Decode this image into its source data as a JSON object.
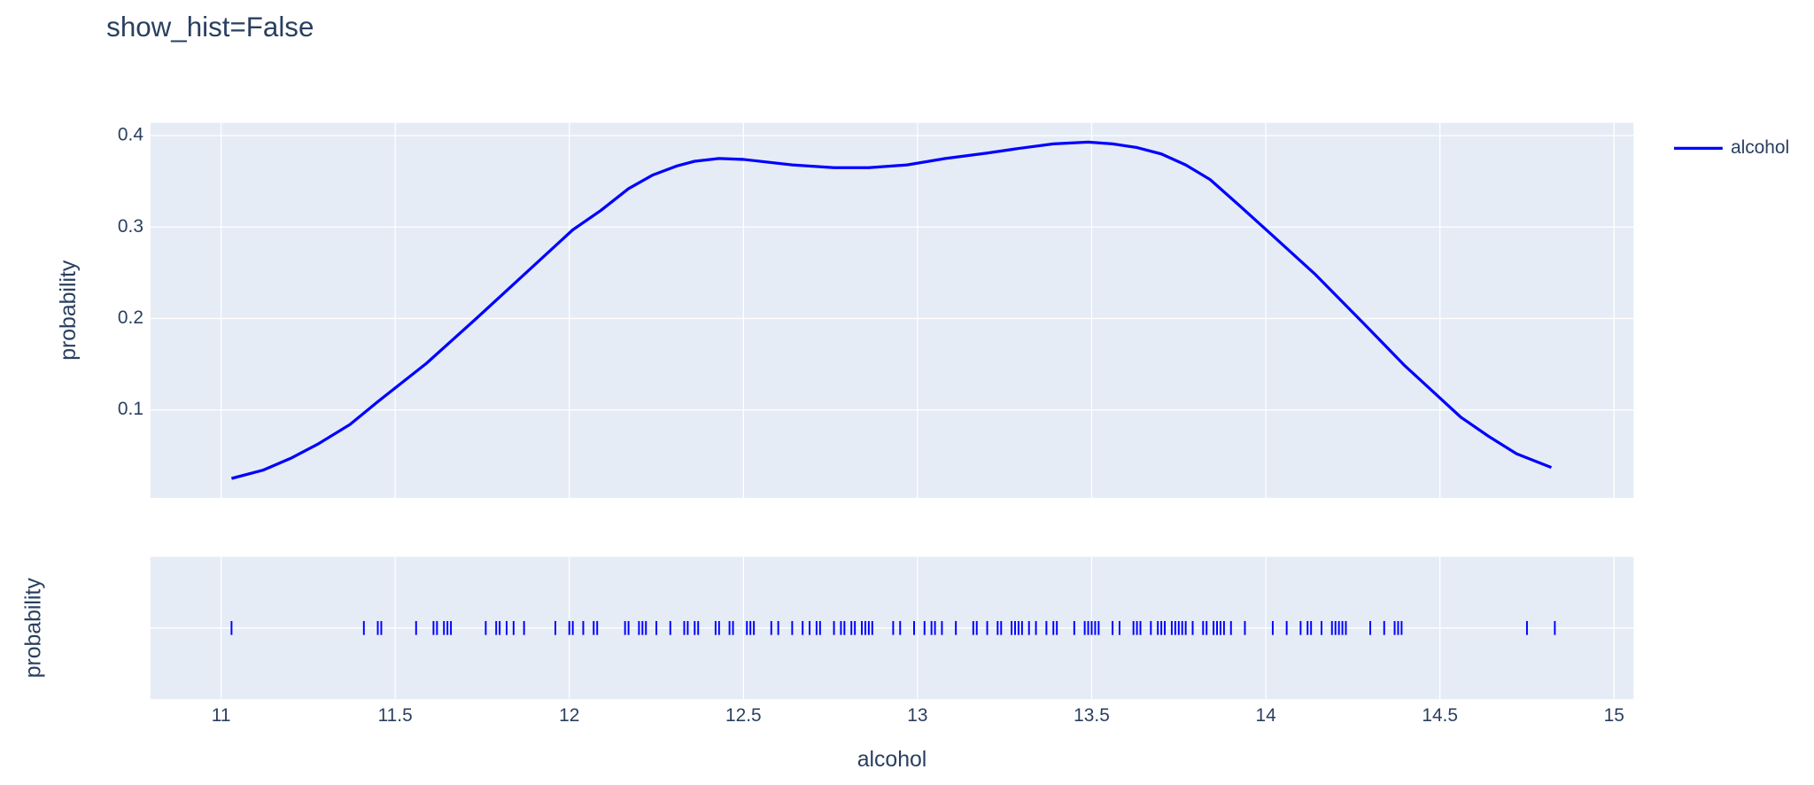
{
  "chart_data": [
    {
      "type": "line",
      "title": "show_hist=False",
      "ylabel": "probability",
      "grid": true,
      "legend": "top-right",
      "xlim": [
        10.797,
        15.056
      ],
      "xticks": [
        11,
        11.5,
        12,
        12.5,
        13,
        13.5,
        14,
        14.5,
        15
      ],
      "ylim": [
        0.0038,
        0.414
      ],
      "yticks": [
        0.1,
        0.2,
        0.3,
        0.4
      ],
      "series": [
        {
          "name": "alcohol",
          "color": "#0000ff",
          "x": [
            11.03,
            11.12,
            11.2,
            11.28,
            11.37,
            11.45,
            11.59,
            11.73,
            11.87,
            12.01,
            12.09,
            12.17,
            12.24,
            12.31,
            12.36,
            12.43,
            12.5,
            12.64,
            12.76,
            12.86,
            12.97,
            13.08,
            13.2,
            13.29,
            13.39,
            13.49,
            13.56,
            13.63,
            13.7,
            13.77,
            13.84,
            13.92,
            14.01,
            14.14,
            14.28,
            14.4,
            14.48,
            14.56,
            14.64,
            14.72,
            14.82
          ],
          "values": [
            0.025,
            0.034,
            0.047,
            0.063,
            0.084,
            0.109,
            0.151,
            0.199,
            0.248,
            0.297,
            0.318,
            0.342,
            0.357,
            0.367,
            0.372,
            0.375,
            0.374,
            0.368,
            0.365,
            0.365,
            0.368,
            0.375,
            0.381,
            0.386,
            0.391,
            0.393,
            0.391,
            0.387,
            0.38,
            0.368,
            0.352,
            0.325,
            0.294,
            0.249,
            0.195,
            0.148,
            0.12,
            0.092,
            0.071,
            0.052,
            0.037
          ]
        }
      ]
    },
    {
      "type": "rug",
      "xlabel": "alcohol",
      "ylabel": "probability",
      "grid": true,
      "xlim": [
        10.797,
        15.056
      ],
      "xticks": [
        11,
        11.5,
        12,
        12.5,
        13,
        13.5,
        14,
        14.5,
        15
      ],
      "series": [
        {
          "name": "alcohol",
          "color": "#0000ff",
          "values": [
            11.03,
            11.41,
            11.45,
            11.46,
            11.56,
            11.61,
            11.62,
            11.64,
            11.65,
            11.66,
            11.76,
            11.79,
            11.8,
            11.82,
            11.84,
            11.87,
            11.96,
            12.0,
            12.01,
            12.04,
            12.07,
            12.08,
            12.16,
            12.17,
            12.2,
            12.21,
            12.22,
            12.25,
            12.29,
            12.33,
            12.34,
            12.36,
            12.37,
            12.42,
            12.43,
            12.46,
            12.47,
            12.51,
            12.52,
            12.53,
            12.58,
            12.6,
            12.64,
            12.67,
            12.69,
            12.71,
            12.72,
            12.76,
            12.78,
            12.79,
            12.81,
            12.82,
            12.84,
            12.85,
            12.86,
            12.87,
            12.93,
            12.95,
            12.99,
            13.02,
            13.04,
            13.05,
            13.07,
            13.11,
            13.16,
            13.17,
            13.2,
            13.23,
            13.24,
            13.27,
            13.28,
            13.29,
            13.3,
            13.32,
            13.34,
            13.37,
            13.39,
            13.4,
            13.45,
            13.48,
            13.49,
            13.5,
            13.51,
            13.52,
            13.56,
            13.58,
            13.62,
            13.63,
            13.64,
            13.67,
            13.69,
            13.7,
            13.71,
            13.73,
            13.74,
            13.75,
            13.76,
            13.77,
            13.79,
            13.82,
            13.83,
            13.85,
            13.86,
            13.87,
            13.88,
            13.9,
            13.94,
            14.02,
            14.06,
            14.1,
            14.12,
            14.13,
            14.16,
            14.19,
            14.2,
            14.21,
            14.22,
            14.23,
            14.3,
            14.34,
            14.37,
            14.38,
            14.39,
            14.75,
            14.83
          ]
        }
      ]
    }
  ]
}
